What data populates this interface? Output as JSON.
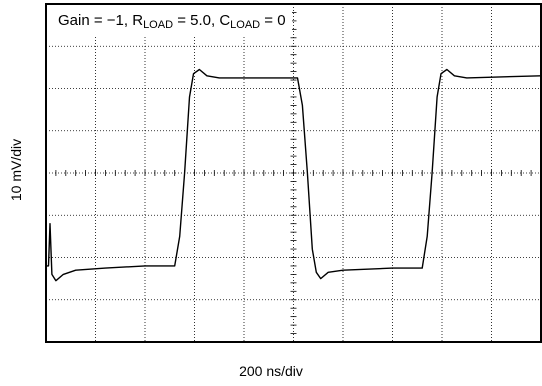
{
  "chart_data": {
    "type": "line",
    "title": "Gain = −1, Rₗₒₐᴅ = 5.0, Cₗₒₐᴅ = 0",
    "title_parts": {
      "gain": "Gain = −1, ",
      "r_main": "R",
      "r_sub": "LOAD",
      "r_value": " = 5.0, ",
      "c_main": "C",
      "c_sub": "LOAD",
      "c_value": " = 0"
    },
    "xlabel": "200 ns/div",
    "ylabel": "10 mV/div",
    "x_divisions": 10,
    "y_divisions": 8,
    "xlim": [
      0,
      10
    ],
    "ylim": [
      -4,
      4
    ],
    "grid": true,
    "series": [
      {
        "points": [
          [
            0.0,
            -2.2
          ],
          [
            0.05,
            -2.2
          ],
          [
            0.08,
            -1.2
          ],
          [
            0.12,
            -2.4
          ],
          [
            0.2,
            -2.55
          ],
          [
            0.35,
            -2.4
          ],
          [
            0.6,
            -2.3
          ],
          [
            1.2,
            -2.25
          ],
          [
            2.0,
            -2.2
          ],
          [
            2.6,
            -2.2
          ],
          [
            2.7,
            -1.5
          ],
          [
            2.8,
            0.0
          ],
          [
            2.9,
            1.8
          ],
          [
            2.98,
            2.35
          ],
          [
            3.1,
            2.45
          ],
          [
            3.25,
            2.3
          ],
          [
            3.5,
            2.25
          ],
          [
            4.5,
            2.25
          ],
          [
            5.08,
            2.25
          ],
          [
            5.18,
            1.6
          ],
          [
            5.28,
            0.0
          ],
          [
            5.38,
            -1.8
          ],
          [
            5.46,
            -2.35
          ],
          [
            5.55,
            -2.5
          ],
          [
            5.7,
            -2.35
          ],
          [
            6.0,
            -2.3
          ],
          [
            7.0,
            -2.25
          ],
          [
            7.6,
            -2.25
          ],
          [
            7.7,
            -1.5
          ],
          [
            7.8,
            0.0
          ],
          [
            7.9,
            1.8
          ],
          [
            7.98,
            2.35
          ],
          [
            8.1,
            2.45
          ],
          [
            8.25,
            2.3
          ],
          [
            8.5,
            2.25
          ],
          [
            10.0,
            2.3
          ]
        ]
      }
    ]
  }
}
